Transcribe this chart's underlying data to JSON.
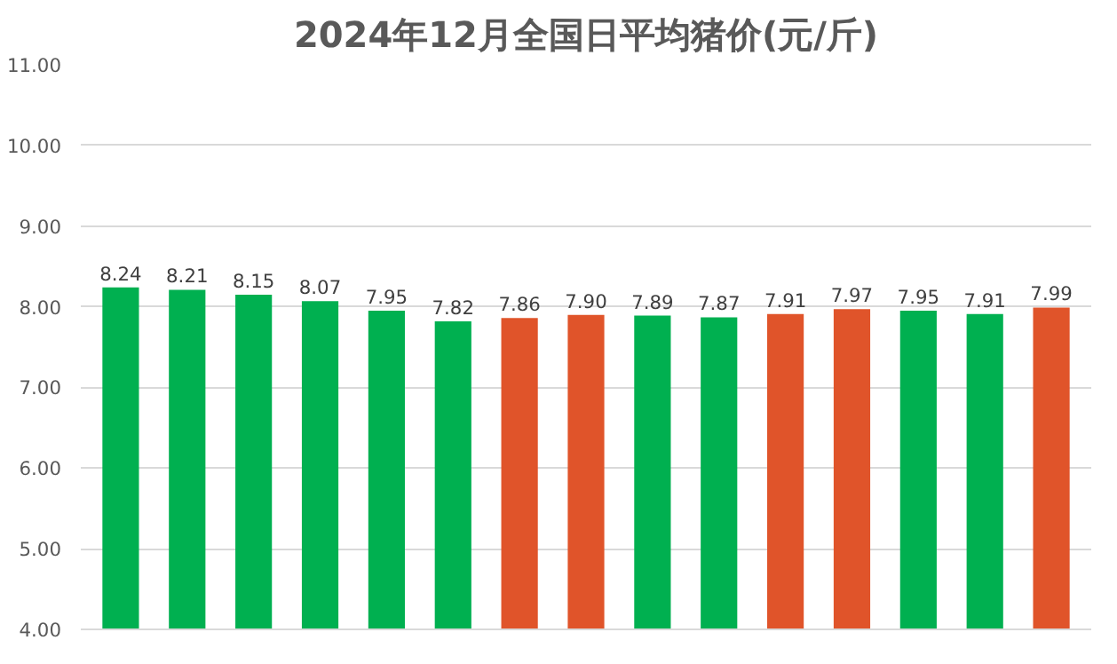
{
  "chart_data": {
    "type": "bar",
    "title": "2024年12月全国日平均猪价(元/斤)",
    "categories": [
      null,
      null,
      null,
      null,
      null,
      null,
      null,
      null,
      null,
      null,
      null,
      null,
      null,
      null,
      null
    ],
    "values": [
      8.24,
      8.21,
      8.15,
      8.07,
      7.95,
      7.82,
      7.86,
      7.9,
      7.89,
      7.87,
      7.91,
      7.97,
      7.95,
      7.91,
      7.99
    ],
    "value_labels": [
      "8.24",
      "8.21",
      "8.15",
      "8.07",
      "7.95",
      "7.82",
      "7.86",
      "7.90",
      "7.89",
      "7.87",
      "7.91",
      "7.97",
      "7.95",
      "7.91",
      "7.99"
    ],
    "colors": [
      "#00b050",
      "#00b050",
      "#00b050",
      "#00b050",
      "#00b050",
      "#00b050",
      "#e0542a",
      "#e0542a",
      "#00b050",
      "#00b050",
      "#e0542a",
      "#e0542a",
      "#00b050",
      "#00b050",
      "#e0542a"
    ],
    "ylim": [
      4,
      11
    ],
    "yticks": [
      {
        "value": 4,
        "label": "4.00"
      },
      {
        "value": 5,
        "label": "5.00"
      },
      {
        "value": 6,
        "label": "6.00"
      },
      {
        "value": 7,
        "label": "7.00"
      },
      {
        "value": 8,
        "label": "8.00"
      },
      {
        "value": 9,
        "label": "9.00"
      },
      {
        "value": 10,
        "label": "10.00"
      },
      {
        "value": 11,
        "label": "11.00"
      }
    ],
    "grid": "y"
  }
}
